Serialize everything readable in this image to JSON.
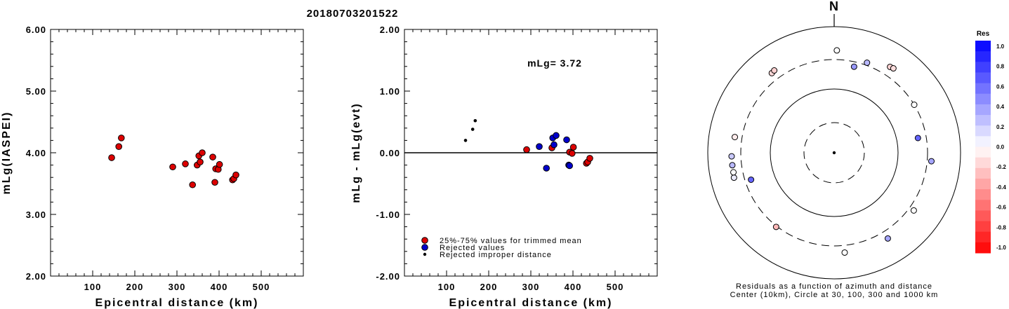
{
  "title": "20180703201522",
  "chart_data": [
    {
      "type": "scatter",
      "xlabel": "Epicentral distance (km)",
      "ylabel": "mLg(IASPEI)",
      "xlim": [
        0,
        600
      ],
      "ylim": [
        2.0,
        6.0
      ],
      "xticks": [
        "100",
        "200",
        "300",
        "400",
        "500"
      ],
      "yticks": [
        "2.00",
        "3.00",
        "4.00",
        "5.00",
        "6.00"
      ],
      "series": [
        {
          "color": "#dd0000",
          "points": [
            [
              145,
              3.92
            ],
            [
              162,
              4.1
            ],
            [
              168,
              4.24
            ],
            [
              290,
              3.77
            ],
            [
              320,
              3.82
            ],
            [
              337,
              3.48
            ],
            [
              348,
              3.8
            ],
            [
              352,
              3.95
            ],
            [
              355,
              3.85
            ],
            [
              360,
              4.0
            ],
            [
              385,
              3.93
            ],
            [
              390,
              3.52
            ],
            [
              392,
              3.74
            ],
            [
              398,
              3.73
            ],
            [
              401,
              3.81
            ],
            [
              432,
              3.56
            ],
            [
              435,
              3.58
            ],
            [
              440,
              3.64
            ]
          ]
        }
      ]
    },
    {
      "type": "scatter",
      "xlabel": "Epicentral distance (km)",
      "ylabel": "mLg - mLg(evt)",
      "xlim": [
        0,
        600
      ],
      "ylim": [
        -2.0,
        2.0
      ],
      "xticks": [
        "100",
        "200",
        "300",
        "400",
        "500"
      ],
      "yticks": [
        "-2.00",
        "-1.00",
        "0.00",
        "1.00",
        "2.00"
      ],
      "annotation": "mLg= 3.72",
      "series": [
        {
          "name": "25%-75% values for trimmed mean",
          "color": "#dd0000",
          "points": [
            [
              290,
              0.05
            ],
            [
              350,
              0.08
            ],
            [
              392,
              0.01
            ],
            [
              398,
              -0.01
            ],
            [
              401,
              0.09
            ],
            [
              432,
              -0.17
            ],
            [
              435,
              -0.15
            ],
            [
              440,
              -0.09
            ]
          ]
        },
        {
          "name": "Rejected values",
          "color": "#0000cc",
          "points": [
            [
              320,
              0.1
            ],
            [
              337,
              -0.25
            ],
            [
              352,
              0.24
            ],
            [
              355,
              0.13
            ],
            [
              360,
              0.28
            ],
            [
              385,
              0.21
            ],
            [
              390,
              -0.2
            ],
            [
              392,
              -0.21
            ]
          ]
        },
        {
          "name": "Rejected improper distance",
          "color": "#000000",
          "points": [
            [
              145,
              0.2
            ],
            [
              162,
              0.38
            ],
            [
              168,
              0.52
            ]
          ]
        }
      ]
    },
    {
      "type": "polar",
      "north_label": "N",
      "caption_line1": "Residuals as a function of azimuth and distance",
      "caption_line2": "Center (10km), Circle at 30, 100, 300 and 1000 km",
      "colorbar_title": "Res",
      "colorbar_ticks": [
        "1.0",
        "0.8",
        "0.6",
        "0.4",
        "0.2",
        "0.0",
        "-0.2",
        "-0.4",
        "-0.6",
        "-0.8",
        "-1.0"
      ],
      "colorbar_range": [
        -1.0,
        1.0
      ],
      "rings_km": [
        10,
        30,
        100,
        300,
        1000
      ],
      "points": [
        {
          "az": 1.5,
          "dist": 420,
          "res": 0.0
        },
        {
          "az": 33,
          "dist": 420,
          "res": -0.17
        },
        {
          "az": 35,
          "dist": 430,
          "res": -0.13
        },
        {
          "az": 20,
          "dist": 330,
          "res": 0.28
        },
        {
          "az": 59,
          "dist": 300,
          "res": 0.0
        },
        {
          "az": 80,
          "dist": 220,
          "res": 0.6
        },
        {
          "az": 95,
          "dist": 350,
          "res": 0.35
        },
        {
          "az": 126,
          "dist": 360,
          "res": 0.0
        },
        {
          "az": 148,
          "dist": 400,
          "res": 0.35
        },
        {
          "az": 174,
          "dist": 390,
          "res": 0.0
        },
        {
          "az": 218,
          "dist": 310,
          "res": -0.27
        },
        {
          "az": 252,
          "dist": 240,
          "res": 0.6
        },
        {
          "az": 256,
          "dist": 430,
          "res": 0.08
        },
        {
          "az": 259,
          "dist": 420,
          "res": 0.0
        },
        {
          "az": 263,
          "dist": 420,
          "res": 0.28
        },
        {
          "az": 268,
          "dist": 420,
          "res": 0.21
        },
        {
          "az": 279,
          "dist": 390,
          "res": -0.08
        },
        {
          "az": 322,
          "dist": 400,
          "res": -0.15
        },
        {
          "az": 324,
          "dist": 410,
          "res": -0.18
        },
        {
          "az": 13,
          "dist": 250,
          "res": 0.4
        }
      ]
    }
  ]
}
